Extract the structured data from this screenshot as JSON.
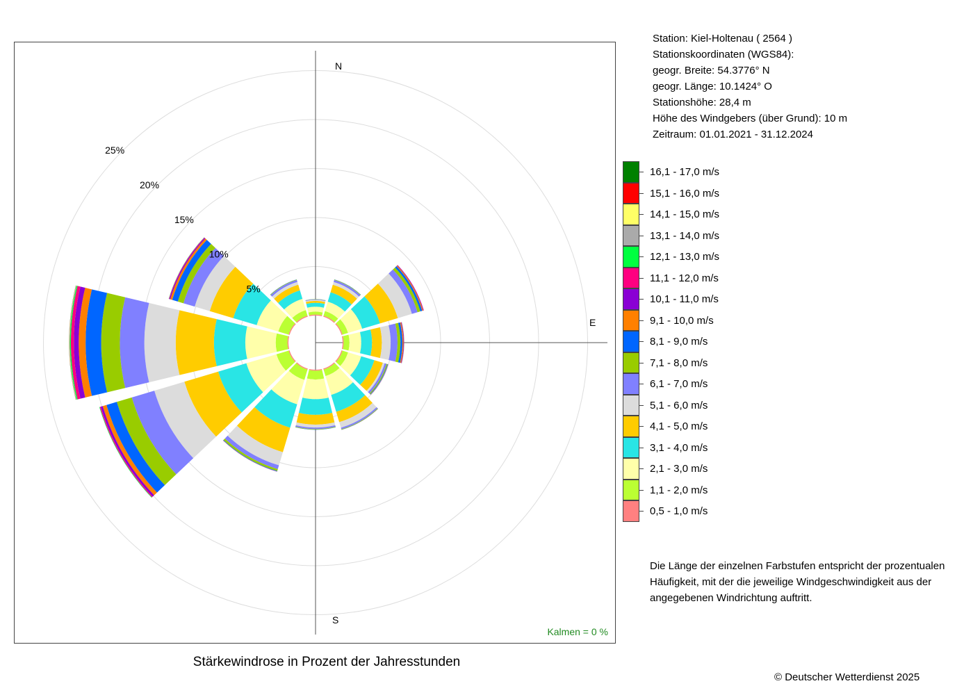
{
  "station": {
    "lines": [
      "Station:  Kiel-Holtenau  ( 2564 )",
      "Stationskoordinaten (WGS84):",
      "geogr. Breite: 54.3776° N",
      "geogr. Länge: 10.1424° O",
      "Stationshöhe: 28,4 m",
      "Höhe des Windgebers (über Grund): 10 m",
      "Zeitraum: 01.01.2021 - 31.12.2024"
    ]
  },
  "legend": {
    "items": [
      {
        "label": "16,1 - 17,0 m/s",
        "color": "#008000"
      },
      {
        "label": "15,1 - 16,0 m/s",
        "color": "#ff0000"
      },
      {
        "label": "14,1 - 15,0 m/s",
        "color": "#ffff66"
      },
      {
        "label": "13,1 - 14,0 m/s",
        "color": "#aaaaaa"
      },
      {
        "label": "12,1 - 13,0 m/s",
        "color": "#00ff40"
      },
      {
        "label": "11,1 - 12,0 m/s",
        "color": "#ff0080"
      },
      {
        "label": "10,1 - 11,0 m/s",
        "color": "#8a00d4"
      },
      {
        "label": "9,1 - 10,0 m/s",
        "color": "#ff8000"
      },
      {
        "label": "8,1 - 9,0 m/s",
        "color": "#0066ff"
      },
      {
        "label": "7,1 - 8,0 m/s",
        "color": "#99cc00"
      },
      {
        "label": "6,1 - 7,0 m/s",
        "color": "#8080ff"
      },
      {
        "label": "5,1 - 6,0 m/s",
        "color": "#dcdcdc"
      },
      {
        "label": "4,1 - 5,0 m/s",
        "color": "#ffcc00"
      },
      {
        "label": "3,1 - 4,0 m/s",
        "color": "#29e5e5"
      },
      {
        "label": "2,1 - 3,0 m/s",
        "color": "#ffffaa"
      },
      {
        "label": "1,1 - 2,0 m/s",
        "color": "#bbff33"
      },
      {
        "label": "0,5 - 1,0 m/s",
        "color": "#ff8080"
      }
    ]
  },
  "note": "Die Länge der einzelnen Farbstufen entspricht der prozentualen Häufigkeit, mit der die jeweilige Windgeschwindigkeit aus der angegebenen Windrichtung auftritt.",
  "calm": "Kalmen  =  0 %",
  "copyright": "© Deutscher Wetterdienst  2025",
  "chart_data": {
    "type": "wind-rose",
    "title": "Stärkewindrose in Prozent der Jahresstunden",
    "direction_labels": [
      "N",
      "E",
      "S"
    ],
    "ring_labels": [
      "5%",
      "10%",
      "15%",
      "20%",
      "25%"
    ],
    "ring_values": [
      5,
      10,
      15,
      20,
      25
    ],
    "sector_width_deg": 30,
    "speed_classes": [
      "0,5 - 1,0 m/s",
      "1,1 - 2,0 m/s",
      "2,1 - 3,0 m/s",
      "3,1 - 4,0 m/s",
      "4,1 - 5,0 m/s",
      "5,1 - 6,0 m/s",
      "6,1 - 7,0 m/s",
      "7,1 - 8,0 m/s",
      "8,1 - 9,0 m/s",
      "9,1 - 10,0 m/s",
      "10,1 - 11,0 m/s",
      "11,1 - 12,0 m/s",
      "12,1 - 13,0 m/s",
      "13,1 - 14,0 m/s",
      "14,1 - 15,0 m/s",
      "15,1 - 16,0 m/s",
      "16,1 - 17,0 m/s"
    ],
    "sectors": [
      {
        "direction_deg": 0,
        "values": [
          0.1,
          0.3,
          0.5,
          0.4,
          0.2,
          0.1,
          0.05,
          0.02,
          0.01,
          0,
          0,
          0,
          0,
          0,
          0,
          0,
          0
        ]
      },
      {
        "direction_deg": 30,
        "values": [
          0.1,
          0.5,
          1.0,
          1.0,
          0.8,
          0.3,
          0.2,
          0.05,
          0.02,
          0,
          0,
          0,
          0,
          0,
          0,
          0,
          0
        ]
      },
      {
        "direction_deg": 60,
        "values": [
          0.1,
          0.6,
          1.5,
          1.9,
          1.9,
          1.5,
          0.6,
          0.3,
          0.2,
          0.1,
          0.05,
          0.02,
          0,
          0,
          0,
          0,
          0
        ]
      },
      {
        "direction_deg": 90,
        "values": [
          0.1,
          0.6,
          1.2,
          1.1,
          1.0,
          0.9,
          0.7,
          0.3,
          0.2,
          0.1,
          0.05,
          0.02,
          0.01,
          0.01,
          0,
          0,
          0
        ]
      },
      {
        "direction_deg": 120,
        "values": [
          0.1,
          0.6,
          1.4,
          1.4,
          0.9,
          0.2,
          0.2,
          0.1,
          0.05,
          0.02,
          0.01,
          0,
          0,
          0,
          0,
          0,
          0
        ]
      },
      {
        "direction_deg": 150,
        "values": [
          0.1,
          0.7,
          2.0,
          1.8,
          1.1,
          0.6,
          0.15,
          0.05,
          0.02,
          0.01,
          0,
          0,
          0,
          0,
          0,
          0,
          0
        ]
      },
      {
        "direction_deg": 180,
        "values": [
          0.1,
          0.9,
          2.0,
          1.6,
          1.0,
          0.3,
          0.15,
          0.05,
          0.02,
          0,
          0,
          0,
          0,
          0,
          0,
          0,
          0
        ]
      },
      {
        "direction_deg": 210,
        "values": [
          0.1,
          1.1,
          2.6,
          2.5,
          2.6,
          1.4,
          0.4,
          0.2,
          0.05,
          0.02,
          0.01,
          0,
          0,
          0,
          0,
          0,
          0
        ]
      },
      {
        "direction_deg": 240,
        "values": [
          0.1,
          1.3,
          3.2,
          3.0,
          3.6,
          3.2,
          2.4,
          1.6,
          1.1,
          0.4,
          0.2,
          0.1,
          0.05,
          0.02,
          0,
          0,
          0
        ]
      },
      {
        "direction_deg": 270,
        "values": [
          0.1,
          1.2,
          3.1,
          3.2,
          3.9,
          3.2,
          2.5,
          1.9,
          1.6,
          0.7,
          0.5,
          0.3,
          0.1,
          0.05,
          0.02,
          0.01,
          0.01
        ]
      },
      {
        "direction_deg": 300,
        "values": [
          0.1,
          1.1,
          2.3,
          2.5,
          2.5,
          1.6,
          1.2,
          0.6,
          0.6,
          0.2,
          0.1,
          0.05,
          0.02,
          0.01,
          0,
          0,
          0
        ]
      },
      {
        "direction_deg": 330,
        "values": [
          0.1,
          0.6,
          1.2,
          0.9,
          0.6,
          0.3,
          0.2,
          0.05,
          0.02,
          0,
          0,
          0,
          0,
          0,
          0,
          0,
          0
        ]
      }
    ]
  }
}
